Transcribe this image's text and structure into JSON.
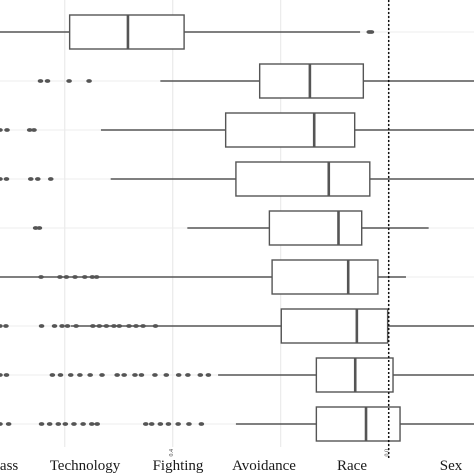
{
  "chart_data": {
    "type": "box",
    "title": "",
    "xlabel": "",
    "ylabel": "",
    "orientation": "horizontal",
    "x_domain": [
      -0.72,
      0.158
    ],
    "x_tick_labels": [
      "0.4",
      "0.0"
    ],
    "x_tick_values": [
      -0.4,
      0.0
    ],
    "grid": true,
    "reference_line": {
      "x": 0.0,
      "style": "dotted"
    },
    "bottom_labels": [
      "Class",
      "Technology",
      "Fighting",
      "Avoidance",
      "Race",
      "Sex"
    ],
    "boxes": [
      {
        "whisker_low": -0.72,
        "q1": -0.591,
        "median": -0.483,
        "q3": -0.379,
        "whisker_high": -0.053,
        "outliers": [
          -0.036,
          -0.032
        ]
      },
      {
        "whisker_low": -0.423,
        "q1": -0.239,
        "median": -0.146,
        "q3": -0.047,
        "whisker_high": 0.158,
        "outliers": [
          -0.645,
          -0.632,
          -0.592,
          -0.555
        ]
      },
      {
        "whisker_low": -0.533,
        "q1": -0.302,
        "median": -0.138,
        "q3": -0.063,
        "whisker_high": 0.158,
        "outliers": [
          -0.72,
          -0.707,
          -0.665,
          -0.657
        ]
      },
      {
        "whisker_low": -0.515,
        "q1": -0.283,
        "median": -0.111,
        "q3": -0.035,
        "whisker_high": 0.158,
        "outliers": [
          -0.72,
          -0.708,
          -0.663,
          -0.65,
          -0.626
        ]
      },
      {
        "whisker_low": -0.373,
        "q1": -0.221,
        "median": -0.093,
        "q3": -0.05,
        "whisker_high": 0.074,
        "outliers": [
          -0.654,
          -0.647
        ]
      },
      {
        "whisker_low": -0.72,
        "q1": -0.216,
        "median": -0.075,
        "q3": -0.02,
        "whisker_high": 0.032,
        "outliers": [
          -0.644,
          -0.609,
          -0.597,
          -0.581,
          -0.563,
          -0.549,
          -0.541
        ]
      },
      {
        "whisker_low": -0.589,
        "q1": -0.199,
        "median": -0.059,
        "q3": -0.002,
        "whisker_high": 0.158,
        "outliers": [
          -0.72,
          -0.709,
          -0.643,
          -0.619,
          -0.605,
          -0.595,
          -0.579,
          -0.548,
          -0.536,
          -0.523,
          -0.509,
          -0.499,
          -0.481,
          -0.468,
          -0.455,
          -0.432
        ]
      },
      {
        "whisker_low": -0.316,
        "q1": -0.134,
        "median": -0.062,
        "q3": 0.008,
        "whisker_high": 0.158,
        "outliers": [
          -0.72,
          -0.708,
          -0.623,
          -0.608,
          -0.589,
          -0.572,
          -0.553,
          -0.531,
          -0.503,
          -0.49,
          -0.47,
          -0.458,
          -0.433,
          -0.412,
          -0.389,
          -0.372,
          -0.349,
          -0.334
        ]
      },
      {
        "whisker_low": -0.283,
        "q1": -0.134,
        "median": -0.042,
        "q3": 0.021,
        "whisker_high": 0.158,
        "outliers": [
          -0.72,
          -0.704,
          -0.643,
          -0.628,
          -0.612,
          -0.599,
          -0.583,
          -0.566,
          -0.55,
          -0.54,
          -0.45,
          -0.439,
          -0.423,
          -0.408,
          -0.39,
          -0.37,
          -0.347
        ]
      }
    ]
  }
}
